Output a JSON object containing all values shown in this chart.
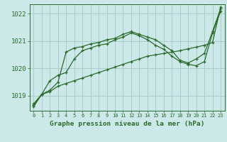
{
  "background_color": "#cce8e8",
  "grid_color": "#aacccc",
  "line_color": "#2a6b2a",
  "title": "Graphe pression niveau de la mer (hPa)",
  "xlim": [
    -0.5,
    23.5
  ],
  "ylim": [
    1018.45,
    1022.35
  ],
  "yticks": [
    1019,
    1020,
    1021,
    1022
  ],
  "xtick_labels": [
    "0",
    "1",
    "2",
    "3",
    "4",
    "5",
    "6",
    "7",
    "8",
    "9",
    "10",
    "11",
    "12",
    "13",
    "14",
    "15",
    "16",
    "17",
    "18",
    "19",
    "20",
    "21",
    "22",
    "23"
  ],
  "line1_x": [
    0,
    1,
    2,
    3,
    4,
    5,
    6,
    7,
    8,
    9,
    10,
    11,
    12,
    13,
    14,
    15,
    16,
    17,
    18,
    19,
    20,
    21,
    22,
    23
  ],
  "line1_y": [
    1018.65,
    1019.05,
    1019.55,
    1019.75,
    1019.85,
    1020.35,
    1020.65,
    1020.75,
    1020.85,
    1020.9,
    1021.05,
    1021.15,
    1021.3,
    1021.2,
    1021.05,
    1020.85,
    1020.7,
    1020.45,
    1020.25,
    1020.15,
    1020.1,
    1020.25,
    1021.3,
    1022.1
  ],
  "line2_x": [
    0,
    1,
    2,
    3,
    4,
    5,
    6,
    7,
    8,
    9,
    10,
    11,
    12,
    13,
    14,
    15,
    16,
    17,
    18,
    19,
    20,
    21,
    22,
    23
  ],
  "line2_y": [
    1018.6,
    1019.05,
    1019.2,
    1019.5,
    1020.6,
    1020.75,
    1020.8,
    1020.9,
    1020.95,
    1021.05,
    1021.1,
    1021.25,
    1021.35,
    1021.25,
    1021.15,
    1021.05,
    1020.85,
    1020.65,
    1020.3,
    1020.2,
    1020.35,
    1020.55,
    1021.35,
    1022.2
  ],
  "line3_x": [
    0,
    1,
    2,
    3,
    4,
    5,
    6,
    7,
    8,
    9,
    10,
    11,
    12,
    13,
    14,
    15,
    16,
    17,
    18,
    19,
    20,
    21,
    22,
    23
  ],
  "line3_y": [
    1018.7,
    1019.05,
    1019.15,
    1019.35,
    1019.45,
    1019.55,
    1019.65,
    1019.75,
    1019.85,
    1019.95,
    1020.05,
    1020.15,
    1020.25,
    1020.35,
    1020.45,
    1020.5,
    1020.55,
    1020.6,
    1020.65,
    1020.72,
    1020.78,
    1020.85,
    1020.95,
    1022.25
  ]
}
